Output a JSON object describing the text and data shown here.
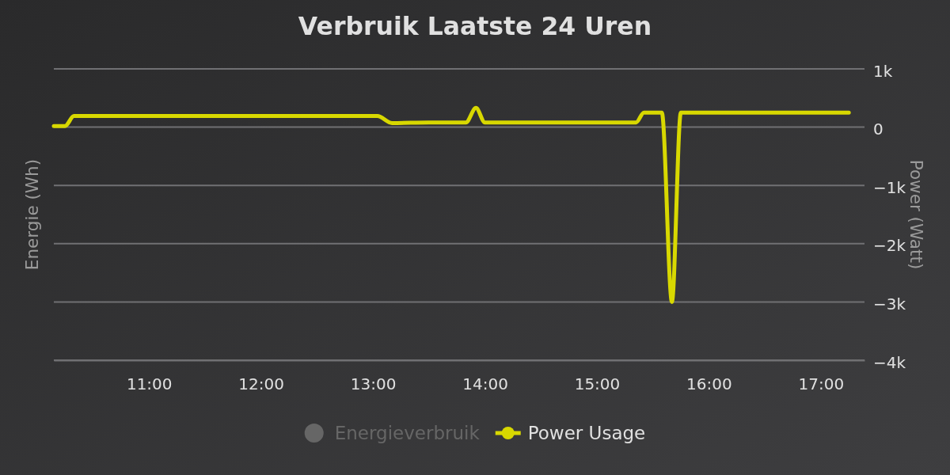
{
  "chart_data": {
    "type": "line",
    "title": "Verbruik Laatste 24 Uren",
    "ylabel": "Power (Watt)",
    "y2label": "Energie (Wh)",
    "x": [
      10.15,
      10.25,
      10.33,
      11,
      12,
      13,
      13.04,
      13.17,
      13.5,
      13.83,
      13.92,
      14,
      14.5,
      15,
      15.35,
      15.42,
      15.58,
      15.67,
      15.75,
      16,
      16.5,
      17,
      17.25
    ],
    "xlim": [
      10.15,
      17.39
    ],
    "xticks": [
      {
        "value": 11,
        "label": "11:00"
      },
      {
        "value": 12,
        "label": "12:00"
      },
      {
        "value": 13,
        "label": "13:00"
      },
      {
        "value": 14,
        "label": "14:00"
      },
      {
        "value": 15,
        "label": "15:00"
      },
      {
        "value": 16,
        "label": "16:00"
      },
      {
        "value": 17,
        "label": "17:00"
      }
    ],
    "ylim": [
      -4000,
      1000
    ],
    "yticks": [
      {
        "value": 1000,
        "label": "1k"
      },
      0,
      {
        "value": -1000,
        "label": "−1k"
      },
      {
        "value": -2000,
        "label": "−2k"
      },
      {
        "value": -3000,
        "label": "−3k"
      },
      {
        "value": -4000,
        "label": "−4k"
      }
    ],
    "grid": "y",
    "legend": "bottom",
    "series": [
      {
        "name": "Energieverbruik",
        "type": "bar",
        "color": "#666666",
        "values": [
          null,
          null,
          null,
          null,
          null,
          null,
          null,
          null,
          null,
          null,
          null,
          null,
          null,
          null,
          null,
          null,
          null,
          null,
          null,
          null,
          null,
          null,
          null
        ]
      },
      {
        "name": "Power Usage",
        "color": "#d8d800",
        "values": [
          20,
          20,
          190,
          190,
          190,
          190,
          190,
          70,
          80,
          80,
          330,
          80,
          80,
          80,
          80,
          250,
          250,
          -3000,
          250,
          250,
          250,
          250,
          250
        ]
      }
    ]
  }
}
